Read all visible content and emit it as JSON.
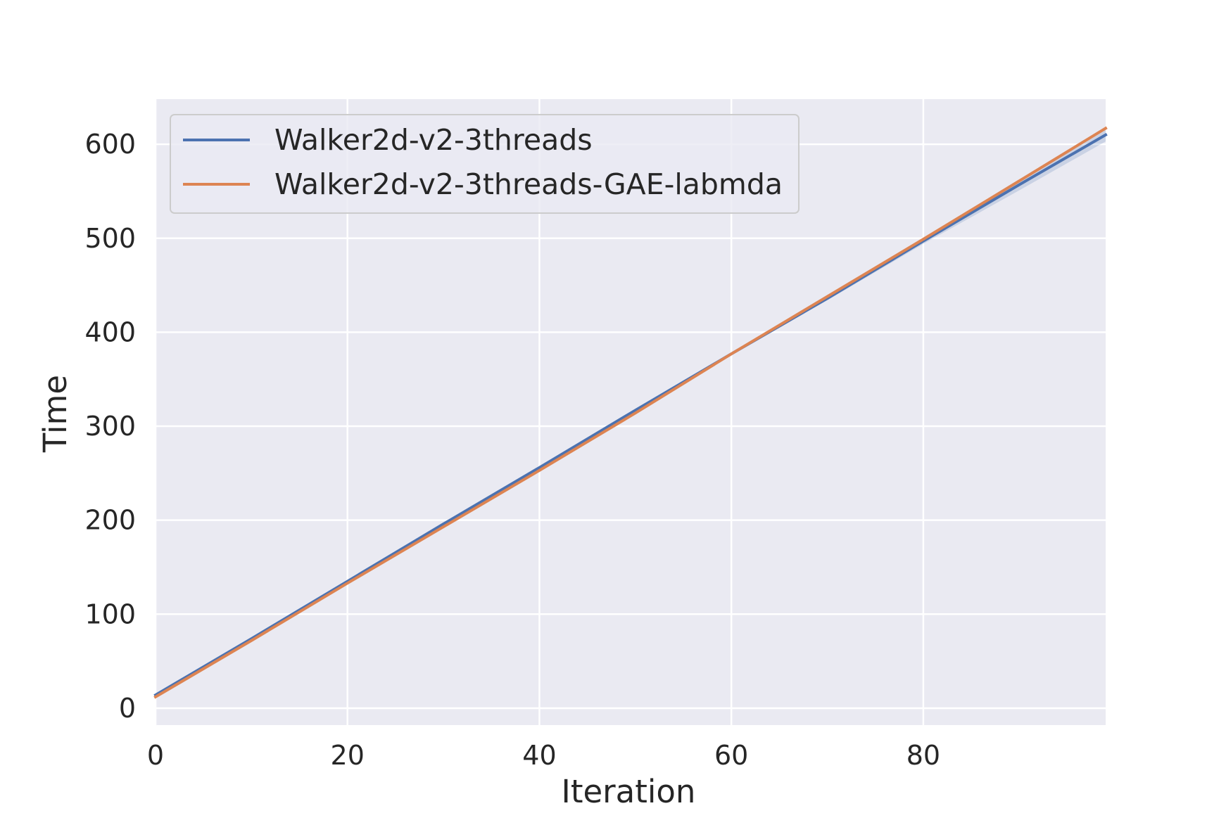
{
  "chart_data": {
    "type": "line",
    "title": "",
    "xlabel": "Iteration",
    "ylabel": "Time",
    "xlim": [
      0,
      99
    ],
    "ylim": [
      -18,
      648
    ],
    "x_ticks": [
      0,
      20,
      40,
      60,
      80
    ],
    "y_ticks": [
      0,
      100,
      200,
      300,
      400,
      500,
      600
    ],
    "grid": true,
    "legend_position": "top-left",
    "background_color": "#eaeaf2",
    "grid_color": "#ffffff",
    "series": [
      {
        "name": "Walker2d-v2-3threads",
        "color": "#4c72b0",
        "x": [
          0,
          10,
          20,
          30,
          40,
          50,
          60,
          70,
          80,
          90,
          99
        ],
        "y": [
          14,
          74,
          135,
          196,
          256,
          317,
          377,
          436,
          497,
          557,
          610
        ],
        "band_lower": [
          13,
          73,
          134,
          195,
          255,
          316,
          376,
          434,
          494,
          551,
          603
        ],
        "band_upper": [
          15,
          75,
          136,
          197,
          257,
          318,
          378,
          437,
          499,
          560,
          615
        ]
      },
      {
        "name": "Walker2d-v2-3threads-GAE-labmda",
        "color": "#dd8452",
        "x": [
          0,
          10,
          20,
          30,
          40,
          50,
          60,
          70,
          80,
          90,
          99
        ],
        "y": [
          12,
          72,
          133,
          193,
          253,
          314,
          377,
          438,
          499,
          561,
          617
        ]
      }
    ]
  }
}
